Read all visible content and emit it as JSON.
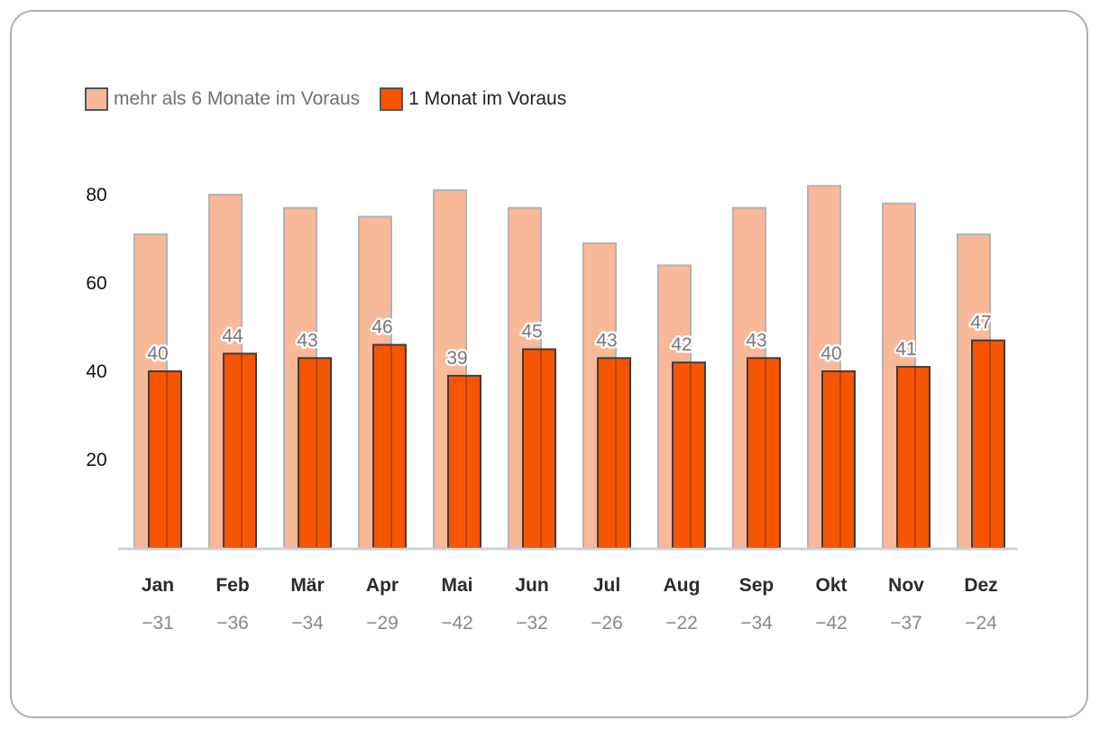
{
  "chart_data": {
    "type": "bar",
    "categories": [
      "Jan",
      "Feb",
      "Mär",
      "Apr",
      "Mai",
      "Jun",
      "Jul",
      "Aug",
      "Sep",
      "Okt",
      "Nov",
      "Dez"
    ],
    "sublabels": [
      "−31",
      "−36",
      "−34",
      "−29",
      "−42",
      "−32",
      "−26",
      "−22",
      "−34",
      "−42",
      "−37",
      "−24"
    ],
    "series": [
      {
        "name": "mehr als 6 Monate im Voraus",
        "values": [
          71,
          80,
          77,
          75,
          81,
          77,
          69,
          64,
          77,
          82,
          78,
          71
        ],
        "color": "#f9b898",
        "border_color": "#b3b3b3"
      },
      {
        "name": "1 Monat im Voraus",
        "values": [
          40,
          44,
          43,
          46,
          39,
          45,
          43,
          42,
          43,
          40,
          41,
          47
        ],
        "color": "#f75500",
        "border_color": "#3d3d3d",
        "data_labels": [
          "40",
          "44",
          "43",
          "46",
          "39",
          "45",
          "43",
          "42",
          "43",
          "40",
          "41",
          "47"
        ]
      }
    ],
    "yticks": [
      "20",
      "40",
      "60",
      "80"
    ],
    "ytick_values": [
      20,
      40,
      60,
      80
    ],
    "ylim": [
      0,
      90
    ],
    "grid": false,
    "legend_position": "top-left"
  }
}
